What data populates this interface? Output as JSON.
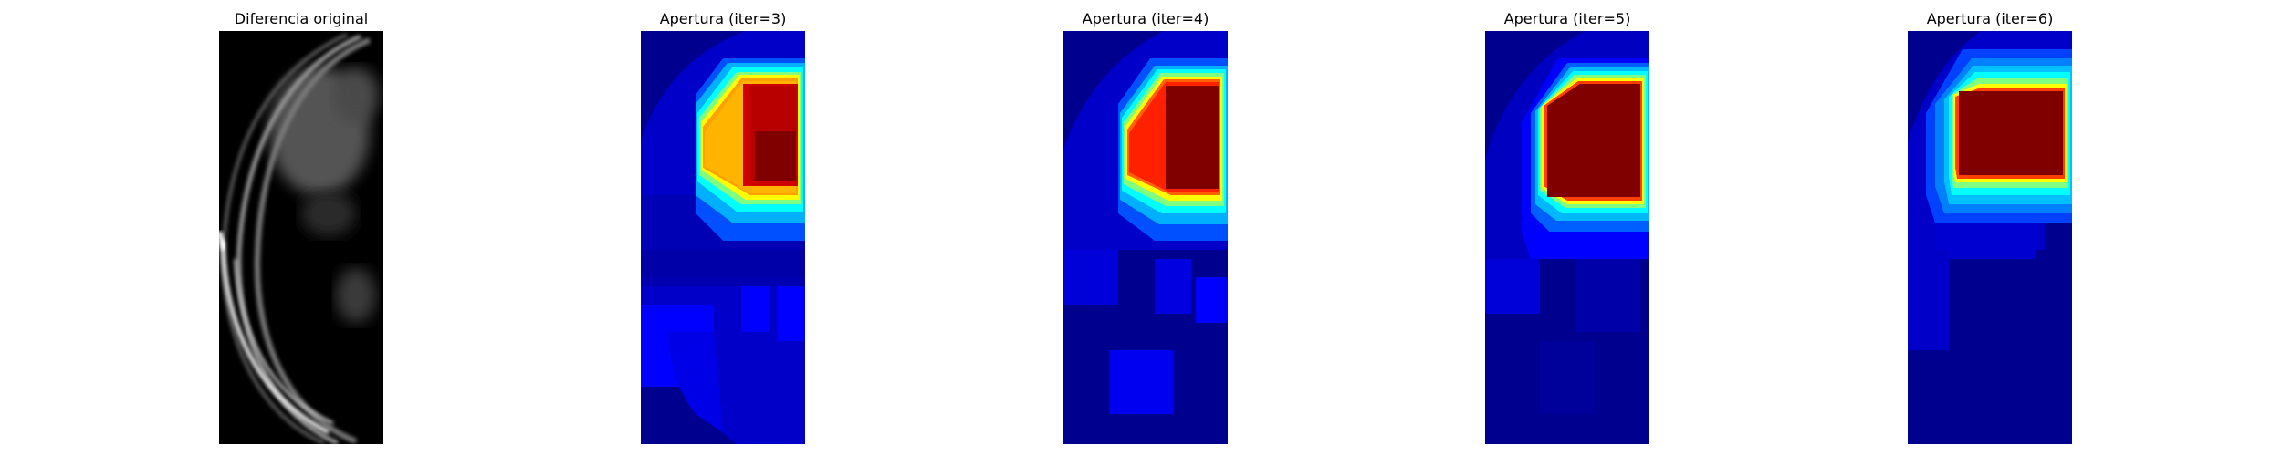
{
  "figure": {
    "panels": [
      {
        "title": "Diferencia original",
        "image": "grayscale-difference-image"
      },
      {
        "title": "Apertura (iter=3)",
        "image": "jet-colormap-heatmap"
      },
      {
        "title": "Apertura (iter=4)",
        "image": "jet-colormap-heatmap"
      },
      {
        "title": "Apertura (iter=5)",
        "image": "jet-colormap-heatmap"
      },
      {
        "title": "Apertura (iter=6)",
        "image": "jet-colormap-heatmap"
      }
    ]
  }
}
